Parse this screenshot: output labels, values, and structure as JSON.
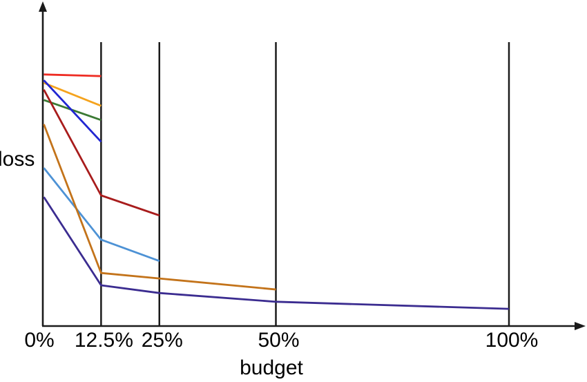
{
  "figure": {
    "background": "#ffffff",
    "axis_color": "#1a1a1a",
    "ylabel": "loss",
    "xlabel": "budget"
  },
  "chart_data": {
    "type": "line",
    "title": "",
    "xlabel": "budget",
    "ylabel": "loss",
    "x_range": [
      0,
      100
    ],
    "x_tick_values": [
      0,
      12.5,
      25,
      50,
      100
    ],
    "x_tick_labels": [
      "0%",
      "12.5%",
      "25%",
      "50%",
      "100%"
    ],
    "y_axis_note": "y axis has no numeric scale; loss values are relative (fraction of axis height, estimated from plot)",
    "ylim": [
      0,
      1
    ],
    "grid": "off",
    "legend": "none",
    "vertical_guides_at_x": [
      12.5,
      25,
      50,
      100
    ],
    "series": [
      {
        "name": "red",
        "color": "#ee2b22",
        "x": [
          0,
          12.5
        ],
        "y": [
          0.776,
          0.771
        ]
      },
      {
        "name": "orange",
        "color": "#f5a31d",
        "x": [
          0,
          12.5
        ],
        "y": [
          0.75,
          0.679
        ]
      },
      {
        "name": "green",
        "color": "#3b7a33",
        "x": [
          0,
          12.5
        ],
        "y": [
          0.697,
          0.635
        ]
      },
      {
        "name": "blue",
        "color": "#2126d2",
        "x": [
          0,
          12.5
        ],
        "y": [
          0.758,
          0.568
        ]
      },
      {
        "name": "dark-red",
        "color": "#a81c1c",
        "x": [
          0,
          12.5,
          25
        ],
        "y": [
          0.729,
          0.402,
          0.34
        ]
      },
      {
        "name": "light-blue",
        "color": "#4d92d5",
        "x": [
          0,
          12.5,
          25
        ],
        "y": [
          0.487,
          0.265,
          0.199
        ]
      },
      {
        "name": "brown",
        "color": "#c3731a",
        "x": [
          0,
          12.5,
          25,
          50
        ],
        "y": [
          0.622,
          0.162,
          0.145,
          0.111
        ]
      },
      {
        "name": "navy",
        "color": "#3b2c90",
        "x": [
          0,
          12.5,
          25,
          50,
          100
        ],
        "y": [
          0.397,
          0.124,
          0.1,
          0.073,
          0.051
        ]
      }
    ]
  }
}
